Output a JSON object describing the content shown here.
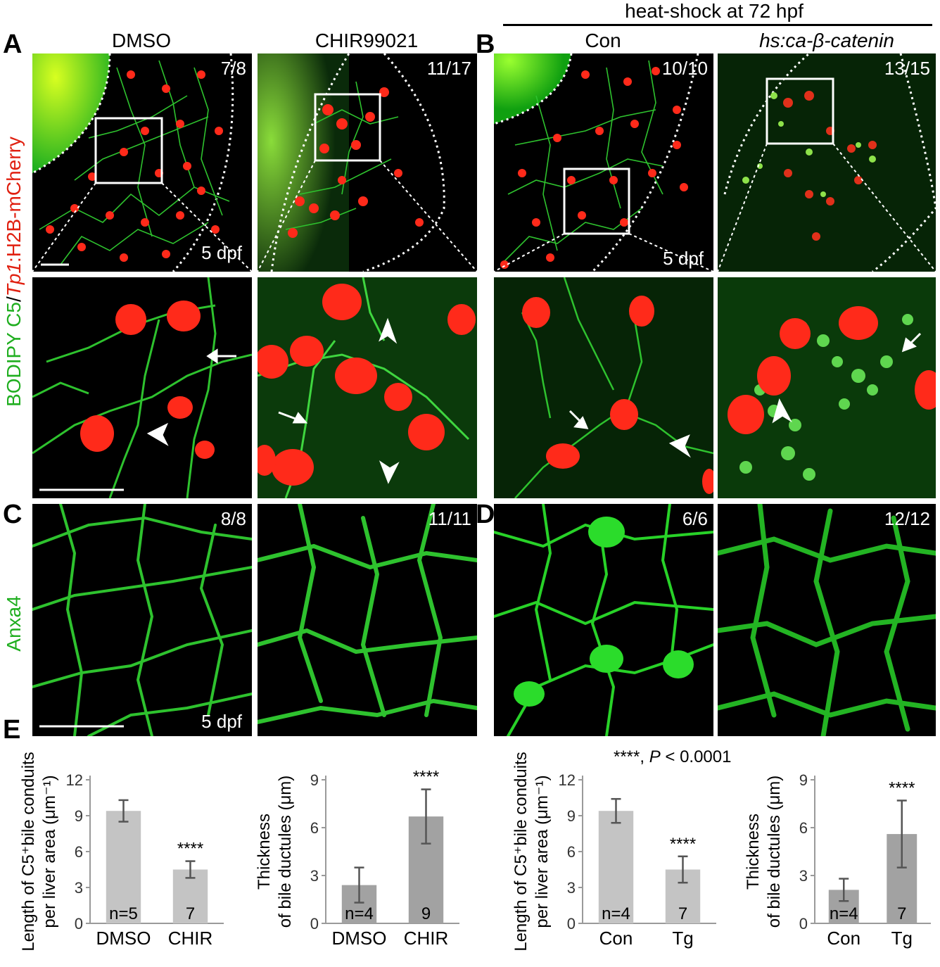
{
  "header": {
    "heat_shock": "heat-shock at 72 hpf"
  },
  "panel_labels": {
    "A": "A",
    "B": "B",
    "C": "C",
    "D": "D",
    "E": "E"
  },
  "columns": {
    "dmso": "DMSO",
    "chir": "CHIR99021",
    "con": "Con",
    "hs": "hs:ca-β-catenin"
  },
  "side_labels": {
    "bodipy": "BODIPY C5",
    "slash1": "/",
    "tp1": "Tp1",
    "h2b": ":H2B-mCherry",
    "anxa4": "Anxa4"
  },
  "fractions": {
    "a_dmso": "7/8",
    "a_chir": "11/17",
    "b_con": "10/10",
    "b_hs": "13/15",
    "c_dmso": "8/8",
    "c_chir": "11/11",
    "d_con": "6/6",
    "d_hs": "12/12"
  },
  "stage_labels": {
    "a": "5 dpf",
    "b": "5 dpf",
    "c": "5 dpf"
  },
  "pvalue": {
    "stars": "****",
    "sep": ", ",
    "p": "P",
    "rest": " < 0.0001"
  },
  "colors": {
    "bodipy_green": "#2ec22e",
    "mcherry_red": "#ff2a1a",
    "bar_light": "#c4c4c4",
    "bar_dark": "#a2a2a2"
  },
  "chart_data": [
    {
      "type": "bar",
      "ylabel_line1": "Length of C5⁺bile conduits",
      "ylabel_line2": "per liver area (μm⁻¹)",
      "categories": [
        "DMSO",
        "CHIR"
      ],
      "values": [
        9.4,
        4.5
      ],
      "errors": [
        0.9,
        0.7
      ],
      "n_labels": [
        "n=5",
        "7"
      ],
      "significance": [
        "",
        "****"
      ],
      "ylim": [
        0,
        12
      ],
      "yticks": [
        "0",
        "3",
        "6",
        "9",
        "12"
      ]
    },
    {
      "type": "bar",
      "ylabel_line1": "Thickness",
      "ylabel_line2": "of bile ductules (μm)",
      "categories": [
        "DMSO",
        "CHIR"
      ],
      "values": [
        2.4,
        6.7
      ],
      "errors": [
        1.1,
        1.7
      ],
      "n_labels": [
        "n=4",
        "9"
      ],
      "significance": [
        "",
        "****"
      ],
      "ylim": [
        0,
        9
      ],
      "yticks": [
        "0",
        "3",
        "6",
        "9"
      ]
    },
    {
      "type": "bar",
      "ylabel_line1": "Length of C5⁺bile conduits",
      "ylabel_line2": "per liver area (μm⁻¹)",
      "categories": [
        "Con",
        "Tg"
      ],
      "values": [
        9.4,
        4.5
      ],
      "errors": [
        1.0,
        1.1
      ],
      "n_labels": [
        "n=4",
        "7"
      ],
      "significance": [
        "",
        "****"
      ],
      "ylim": [
        0,
        12
      ],
      "yticks": [
        "0",
        "3",
        "6",
        "9",
        "12"
      ]
    },
    {
      "type": "bar",
      "ylabel_line1": "Thickness",
      "ylabel_line2": "of bile ductules (μm)",
      "categories": [
        "Con",
        "Tg"
      ],
      "values": [
        2.1,
        5.6
      ],
      "errors": [
        0.7,
        2.1
      ],
      "n_labels": [
        "n=4",
        "7"
      ],
      "significance": [
        "",
        "****"
      ],
      "ylim": [
        0,
        9
      ],
      "yticks": [
        "0",
        "3",
        "6",
        "9"
      ]
    }
  ]
}
